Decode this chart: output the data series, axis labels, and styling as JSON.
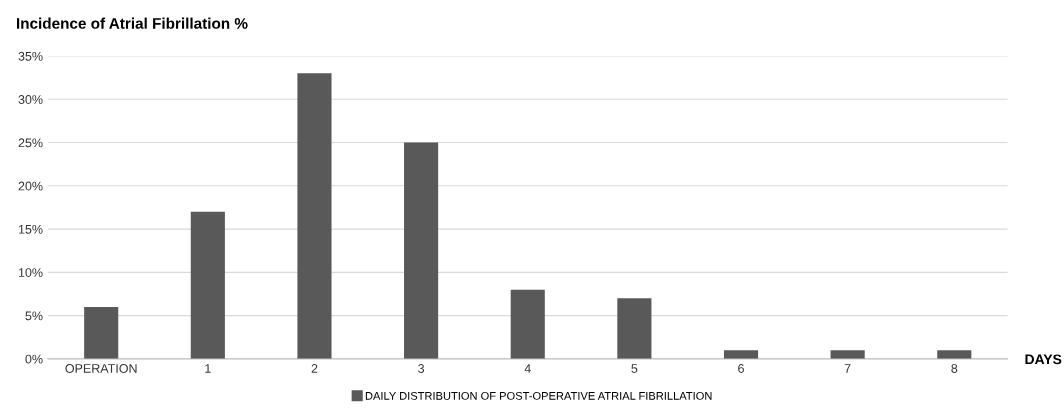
{
  "chart_data": {
    "type": "bar",
    "ylabel": "Incidence of Atrial Fibrillation %",
    "xlabel": "DAYS",
    "categories": [
      "OPERATION",
      "1",
      "2",
      "3",
      "4",
      "5",
      "6",
      "7",
      "8"
    ],
    "series": [
      {
        "name": "DAILY DISTRIBUTION OF POST-OPERATIVE ATRIAL FIBRILLATION",
        "color": "#595959",
        "values": [
          6,
          17,
          33,
          25,
          8,
          7,
          1,
          1,
          1
        ]
      }
    ],
    "ylim": [
      0,
      35
    ],
    "yticks": [
      {
        "value": 0,
        "label": "0%"
      },
      {
        "value": 5,
        "label": "5%"
      },
      {
        "value": 10,
        "label": "10%"
      },
      {
        "value": 15,
        "label": "15%"
      },
      {
        "value": 20,
        "label": "20%"
      },
      {
        "value": 25,
        "label": "25%"
      },
      {
        "value": 30,
        "label": "30%"
      },
      {
        "value": 35,
        "label": "35%"
      }
    ],
    "grid": "y",
    "legend": "bottom"
  }
}
